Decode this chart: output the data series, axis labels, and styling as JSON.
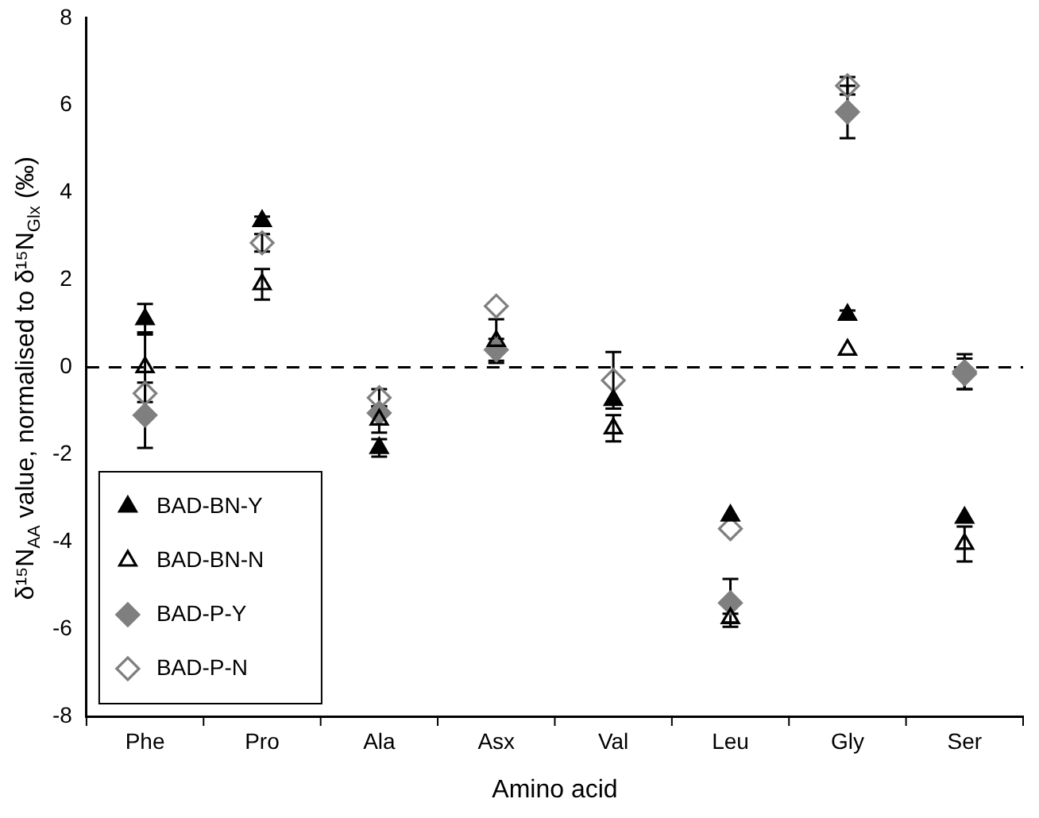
{
  "chart_data": {
    "type": "scatter",
    "xlabel": "Amino acid",
    "ylabel": "δ¹⁵N$_{AA}$ value, normalised to δ¹⁵N$_{Glx}$ (‰)",
    "categories": [
      "Phe",
      "Pro",
      "Ala",
      "Asx",
      "Val",
      "Leu",
      "Gly",
      "Ser"
    ],
    "ylim": [
      -8,
      8
    ],
    "yticks": [
      -8,
      -6,
      -4,
      -2,
      0,
      2,
      4,
      6,
      8
    ],
    "grid": false,
    "legend": "bottom left",
    "ref_lines": [
      {
        "axis": "y",
        "value": 0,
        "line_style": "dashed",
        "color": "#000000"
      }
    ],
    "series": [
      {
        "name": "BAD-BN-Y",
        "color": "#000000",
        "marker": "triangle",
        "values": [
          1.1,
          3.35,
          -1.85,
          null,
          -0.75,
          -3.4,
          1.2,
          -3.45
        ],
        "errors": [
          0.35,
          0.1,
          0.2,
          null,
          null,
          null,
          0.1,
          null
        ]
      },
      {
        "name": "BAD-BN-N",
        "color": "#000000",
        "marker": "triangle-open",
        "values": [
          0.0,
          1.9,
          -1.2,
          0.6,
          -1.4,
          -5.75,
          0.4,
          -4.05
        ],
        "errors": [
          0.8,
          0.35,
          0.3,
          0.5,
          0.3,
          0.1,
          null,
          0.4
        ]
      },
      {
        "name": "BAD-P-Y",
        "color": "#7f7f7f",
        "marker": "diamond",
        "values": [
          -1.1,
          null,
          -1.05,
          0.4,
          null,
          -5.4,
          5.85,
          -0.15
        ],
        "errors": [
          0.75,
          null,
          null,
          0.25,
          null,
          0.55,
          0.6,
          0.35
        ]
      },
      {
        "name": "BAD-P-N",
        "color": "#7f7f7f",
        "marker": "diamond-open",
        "values": [
          -0.6,
          2.85,
          -0.7,
          1.4,
          -0.3,
          -3.7,
          6.45,
          -0.1
        ],
        "errors": [
          null,
          0.2,
          0.2,
          null,
          0.65,
          null,
          0.2,
          0.4
        ]
      }
    ]
  }
}
